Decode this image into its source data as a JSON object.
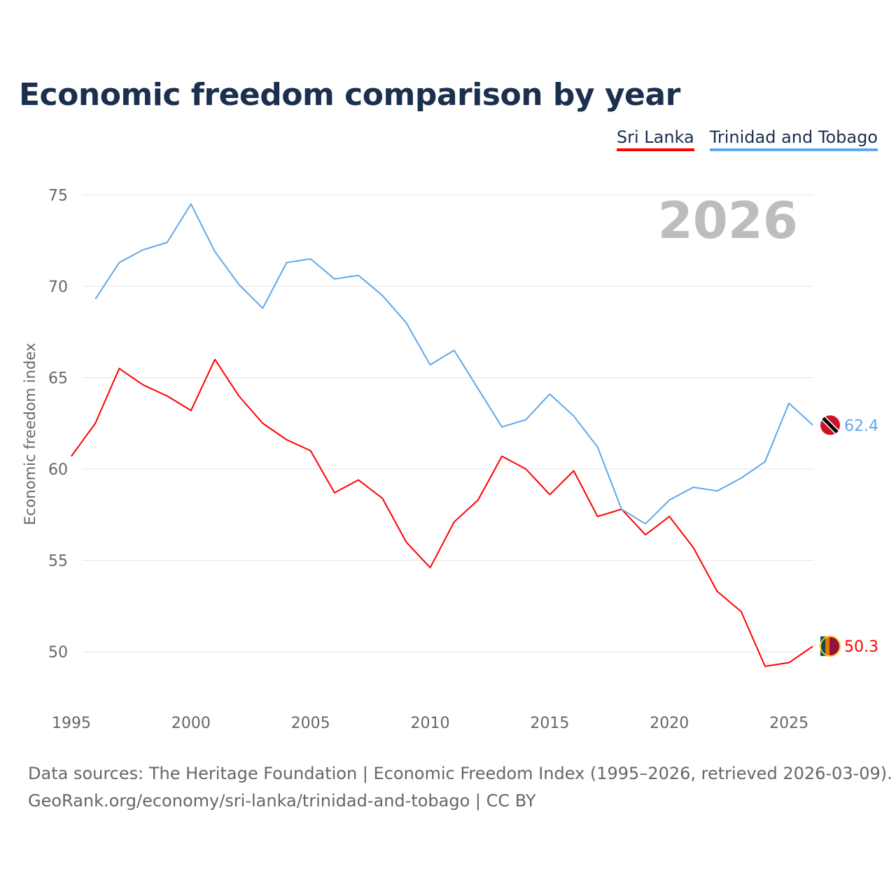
{
  "chart_data": {
    "type": "line",
    "title": "Economic freedom comparison by year",
    "ylabel": "Economic freedom index",
    "xlabel": "",
    "ylim": [
      47,
      76
    ],
    "xlim": [
      1995,
      2026
    ],
    "yticks": [
      50,
      55,
      60,
      65,
      70,
      75
    ],
    "xticks": [
      1995,
      2000,
      2005,
      2010,
      2015,
      2020,
      2025
    ],
    "grid": true,
    "legend_placement": "top-right",
    "year_label": "2026",
    "series": [
      {
        "name": "Sri Lanka",
        "color": "#ff0000",
        "end_label": "50.3",
        "x": [
          1995,
          1996,
          1997,
          1998,
          1999,
          2000,
          2001,
          2002,
          2003,
          2004,
          2005,
          2006,
          2007,
          2008,
          2009,
          2010,
          2011,
          2012,
          2013,
          2014,
          2015,
          2016,
          2017,
          2018,
          2019,
          2020,
          2021,
          2022,
          2023,
          2024,
          2025,
          2026
        ],
        "values": [
          60.7,
          62.5,
          65.5,
          64.6,
          64.0,
          63.2,
          66.0,
          64.0,
          62.5,
          61.6,
          61.0,
          58.7,
          59.4,
          58.4,
          56.0,
          54.6,
          57.1,
          58.3,
          60.7,
          60.0,
          58.6,
          59.9,
          57.4,
          57.8,
          56.4,
          57.4,
          55.7,
          53.3,
          52.2,
          49.2,
          49.4,
          50.3
        ]
      },
      {
        "name": "Trinidad and Tobago",
        "color": "#5fa8ec",
        "end_label": "62.4",
        "x": [
          1996,
          1997,
          1998,
          1999,
          2000,
          2001,
          2002,
          2003,
          2004,
          2005,
          2006,
          2007,
          2008,
          2009,
          2010,
          2011,
          2012,
          2013,
          2014,
          2015,
          2016,
          2017,
          2018,
          2019,
          2020,
          2021,
          2022,
          2023,
          2024,
          2025,
          2026
        ],
        "values": [
          69.3,
          71.3,
          72.0,
          72.4,
          74.5,
          71.9,
          70.1,
          68.8,
          71.3,
          71.5,
          70.4,
          70.6,
          69.5,
          68.0,
          65.7,
          66.5,
          64.4,
          62.3,
          62.7,
          64.1,
          62.9,
          61.2,
          57.8,
          57.0,
          58.3,
          59.0,
          58.8,
          59.5,
          60.4,
          63.6,
          62.4
        ]
      }
    ]
  },
  "footer": {
    "line1": "Data sources: The Heritage Foundation | Economic Freedom Index (1995–2026, retrieved 2026-03-09).",
    "line2": "GeoRank.org/economy/sri-lanka/trinidad-and-tobago | CC BY"
  }
}
